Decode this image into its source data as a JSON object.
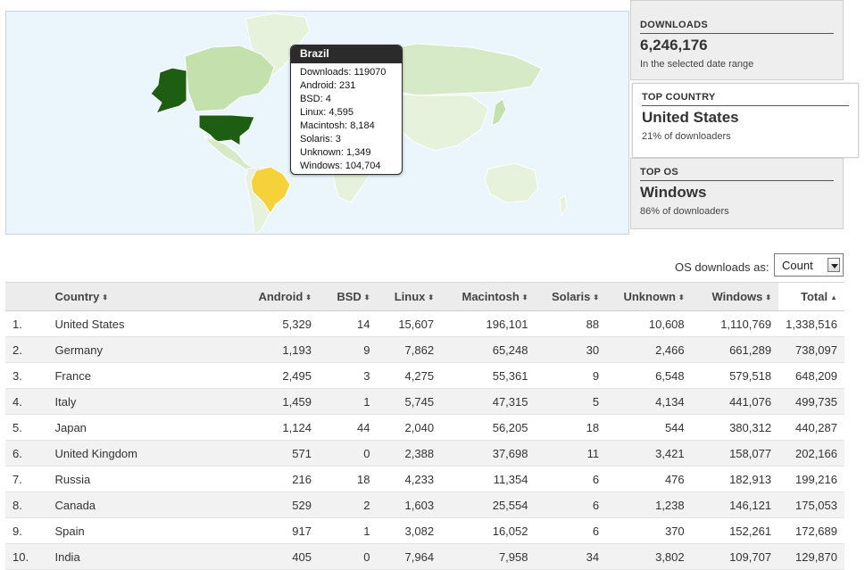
{
  "map": {
    "colors": {
      "ocean": "#eaf5fc",
      "land_default": "#e7f2dc",
      "land_light": "#d6eac7",
      "land_mid": "#c4e0ad",
      "top_country": "#1e5e12",
      "highlight": "#f5d23a"
    },
    "tooltip": {
      "title": "Brazil",
      "lines": [
        "Downloads: 119070",
        "Android: 231",
        "BSD: 4",
        "Linux: 4,595",
        "Macintosh: 8,184",
        "Solaris: 3",
        "Unknown: 1,349",
        "Windows: 104,704"
      ]
    }
  },
  "stats": {
    "downloads": {
      "label": "DOWNLOADS",
      "value": "6,246,176",
      "sub": "In the selected date range"
    },
    "top_country": {
      "label": "TOP COUNTRY",
      "value": "United States",
      "sub": "21% of downloaders"
    },
    "top_os": {
      "label": "TOP OS",
      "value": "Windows",
      "sub": "86% of downloaders"
    }
  },
  "os_downloads": {
    "label": "OS downloads as:",
    "selected": "Count"
  },
  "table": {
    "headers": {
      "country": "Country",
      "android": "Android",
      "bsd": "BSD",
      "linux": "Linux",
      "macintosh": "Macintosh",
      "solaris": "Solaris",
      "unknown": "Unknown",
      "windows": "Windows",
      "total": "Total"
    },
    "sort_icons": {
      "unsorted": "⬍",
      "sorted_desc": "▲"
    },
    "rows": [
      {
        "rank": "1.",
        "country": "United States",
        "android": "5,329",
        "bsd": "14",
        "linux": "15,607",
        "macintosh": "196,101",
        "solaris": "88",
        "unknown": "10,608",
        "windows": "1,110,769",
        "total": "1,338,516"
      },
      {
        "rank": "2.",
        "country": "Germany",
        "android": "1,193",
        "bsd": "9",
        "linux": "7,862",
        "macintosh": "65,248",
        "solaris": "30",
        "unknown": "2,466",
        "windows": "661,289",
        "total": "738,097"
      },
      {
        "rank": "3.",
        "country": "France",
        "android": "2,495",
        "bsd": "3",
        "linux": "4,275",
        "macintosh": "55,361",
        "solaris": "9",
        "unknown": "6,548",
        "windows": "579,518",
        "total": "648,209"
      },
      {
        "rank": "4.",
        "country": "Italy",
        "android": "1,459",
        "bsd": "1",
        "linux": "5,745",
        "macintosh": "47,315",
        "solaris": "5",
        "unknown": "4,134",
        "windows": "441,076",
        "total": "499,735"
      },
      {
        "rank": "5.",
        "country": "Japan",
        "android": "1,124",
        "bsd": "44",
        "linux": "2,040",
        "macintosh": "56,205",
        "solaris": "18",
        "unknown": "544",
        "windows": "380,312",
        "total": "440,287"
      },
      {
        "rank": "6.",
        "country": "United Kingdom",
        "android": "571",
        "bsd": "0",
        "linux": "2,388",
        "macintosh": "37,698",
        "solaris": "11",
        "unknown": "3,421",
        "windows": "158,077",
        "total": "202,166"
      },
      {
        "rank": "7.",
        "country": "Russia",
        "android": "216",
        "bsd": "18",
        "linux": "4,233",
        "macintosh": "11,354",
        "solaris": "6",
        "unknown": "476",
        "windows": "182,913",
        "total": "199,216"
      },
      {
        "rank": "8.",
        "country": "Canada",
        "android": "529",
        "bsd": "2",
        "linux": "1,603",
        "macintosh": "25,554",
        "solaris": "6",
        "unknown": "1,238",
        "windows": "146,121",
        "total": "175,053"
      },
      {
        "rank": "9.",
        "country": "Spain",
        "android": "917",
        "bsd": "1",
        "linux": "3,082",
        "macintosh": "16,052",
        "solaris": "6",
        "unknown": "370",
        "windows": "152,261",
        "total": "172,689"
      },
      {
        "rank": "10.",
        "country": "India",
        "android": "405",
        "bsd": "0",
        "linux": "7,964",
        "macintosh": "7,958",
        "solaris": "34",
        "unknown": "3,802",
        "windows": "109,707",
        "total": "129,870"
      }
    ]
  }
}
